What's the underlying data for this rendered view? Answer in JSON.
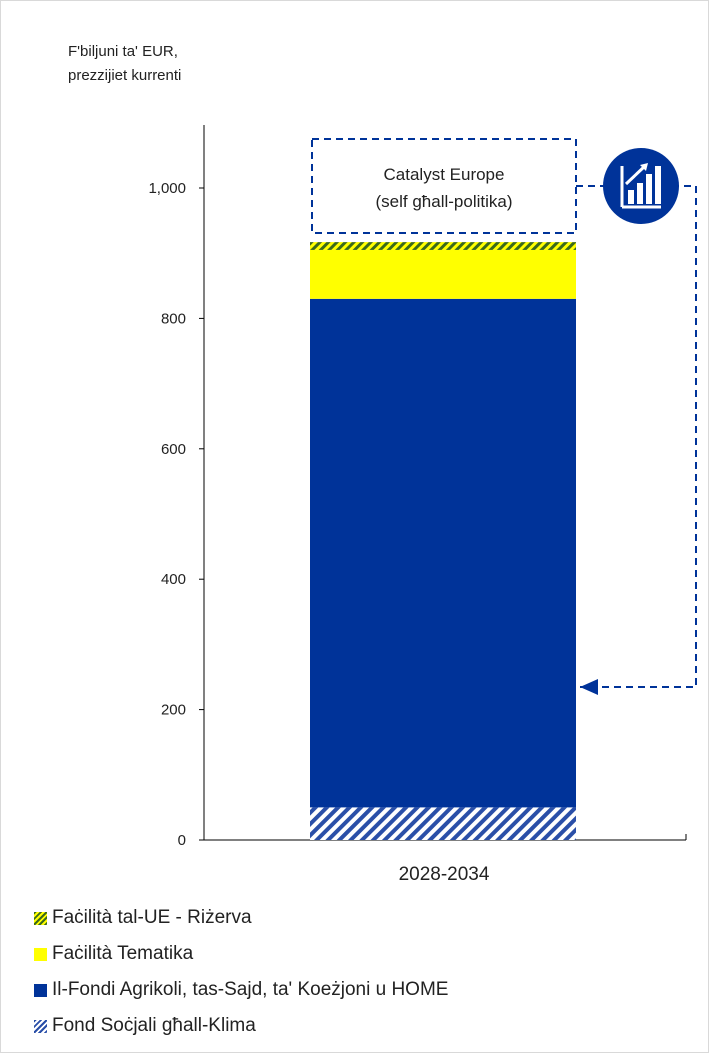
{
  "unit_label": [
    "F'biljuni ta' EUR,",
    "prezzijiet kurrenti"
  ],
  "chart_data": {
    "type": "bar",
    "stacked": true,
    "categories": [
      "2028-2034"
    ],
    "ylim": [
      0,
      1100
    ],
    "yticks": [
      0,
      200,
      400,
      600,
      800,
      1000
    ],
    "ytick_labels": [
      "0",
      "200",
      "400",
      "600",
      "800",
      "1,000"
    ],
    "series": [
      {
        "name": "Fond Soċjali għall-Klima",
        "values": [
          50
        ],
        "color": "#003399",
        "pattern": "hatch-blue"
      },
      {
        "name": "Il-Fondi Agrikoli, tas-Sajd, ta' Koeżjoni u HOME",
        "values": [
          780
        ],
        "color": "#003399",
        "pattern": "solid"
      },
      {
        "name": "Faċilità Tematika",
        "values": [
          75
        ],
        "color": "#ffff00",
        "pattern": "solid"
      },
      {
        "name": "Faċilità tal-UE - Riżerva",
        "values": [
          12
        ],
        "color": "#9aa800",
        "pattern": "hatch-yellow"
      }
    ],
    "annotation": {
      "lines": [
        "Catalyst Europe",
        "(self għall-politika)"
      ],
      "style": "dashed box"
    },
    "icon": "bar-chart-growth-icon"
  },
  "legend": [
    {
      "label": "Faċilità tal-UE - Riżerva",
      "pattern": "hatch-yellow"
    },
    {
      "label": "Faċilità Tematika",
      "pattern": "solid-yellow"
    },
    {
      "label": "Il-Fondi Agrikoli, tas-Sajd, ta' Koeżjoni u HOME",
      "pattern": "solid-blue"
    },
    {
      "label": "Fond Soċjali għall-Klima",
      "pattern": "hatch-blue"
    }
  ]
}
